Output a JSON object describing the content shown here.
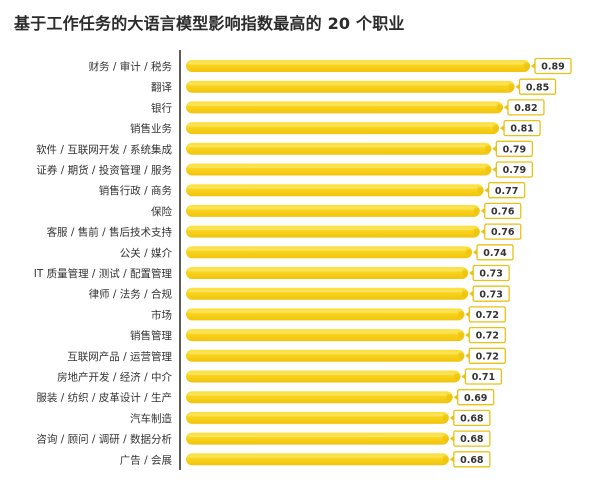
{
  "chart_data": {
    "type": "bar",
    "orientation": "horizontal",
    "title": "基于工作任务的大语言模型影响指数最高的 20 个职业",
    "categories": [
      "财务 / 审计 / 税务",
      "翻译",
      "银行",
      "销售业务",
      "软件 / 互联网开发 / 系统集成",
      "证券 / 期货 / 投资管理 / 服务",
      "销售行政 / 商务",
      "保险",
      "客服 / 售前 / 售后技术支持",
      "公关 / 媒介",
      "IT 质量管理 / 测试 / 配置管理",
      "律师 / 法务 / 合规",
      "市场",
      "销售管理",
      "互联网产品 / 运营管理",
      "房地产开发 / 经济 / 中介",
      "服装 / 纺织 / 皮革设计 / 生产",
      "汽车制造",
      "咨询 / 顾问 / 调研 / 数据分析",
      "广告 / 会展"
    ],
    "values": [
      0.89,
      0.85,
      0.82,
      0.81,
      0.79,
      0.79,
      0.77,
      0.76,
      0.76,
      0.74,
      0.73,
      0.73,
      0.72,
      0.72,
      0.72,
      0.71,
      0.69,
      0.68,
      0.68,
      0.68
    ],
    "value_labels": [
      "0.89",
      "0.85",
      "0.82",
      "0.81",
      "0.79",
      "0.79",
      "0.77",
      "0.76",
      "0.76",
      "0.74",
      "0.73",
      "0.73",
      "0.72",
      "0.72",
      "0.72",
      "0.71",
      "0.69",
      "0.68",
      "0.68",
      "0.68"
    ],
    "xlim": [
      0,
      0.89
    ],
    "grid": false,
    "legend": "none",
    "colors": {
      "bar": "#f7d31c",
      "bar_highlight": "#fbe76a",
      "bar_cap": "#e9bd0a",
      "label_box_border": "#e8c216",
      "axis": "#333333"
    }
  }
}
